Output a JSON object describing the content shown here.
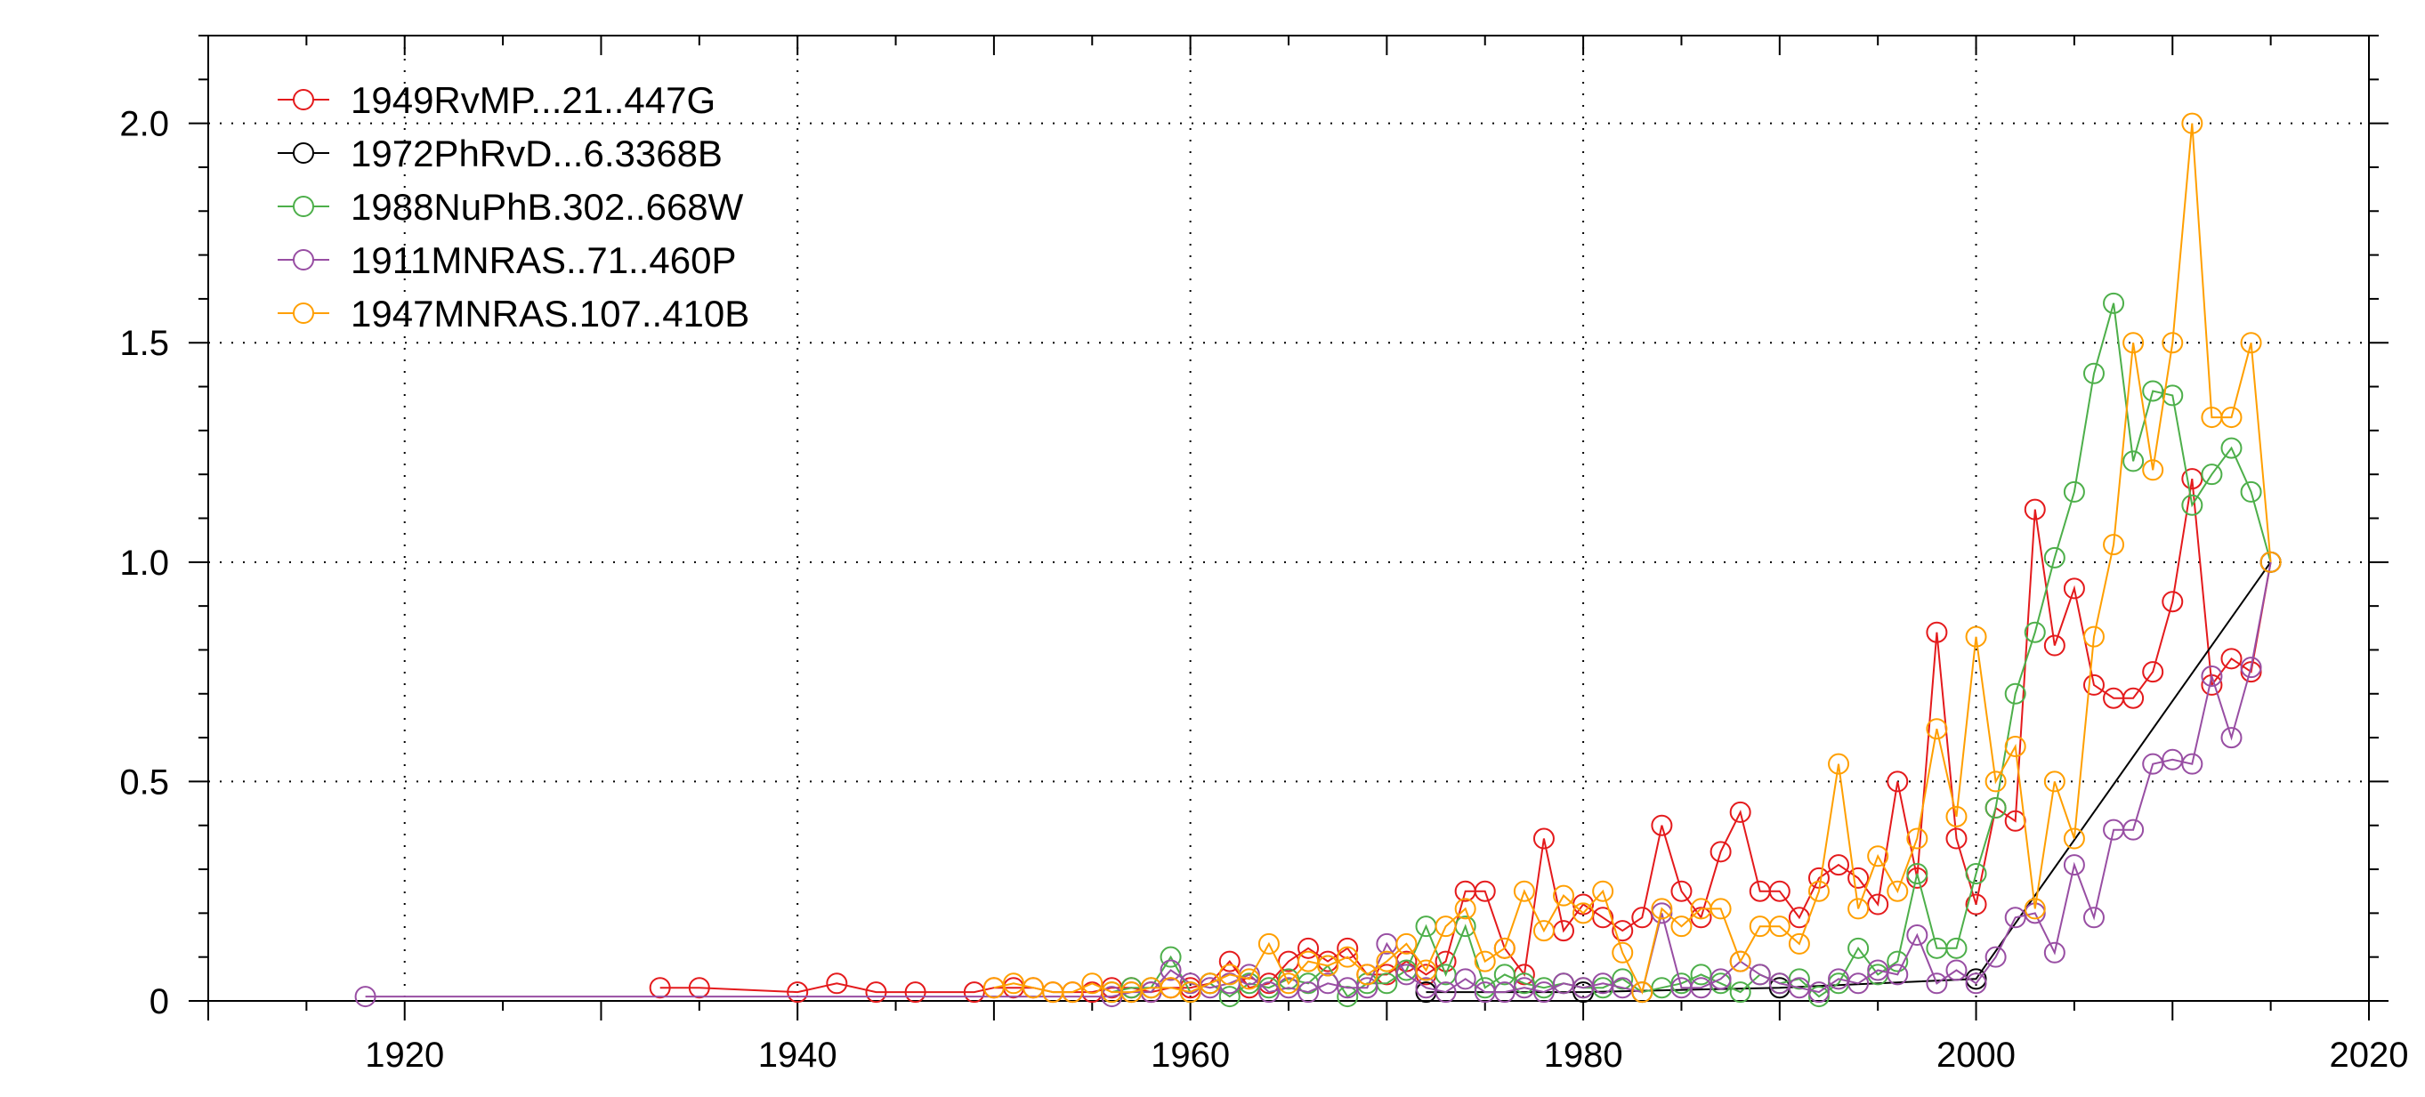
{
  "chart_data": {
    "type": "line",
    "title": "",
    "xlabel": "",
    "ylabel": "",
    "xlim": [
      1910,
      2020
    ],
    "ylim": [
      0,
      2.2
    ],
    "xticks": [
      1920,
      1940,
      1960,
      1980,
      2000,
      2020
    ],
    "yticks": [
      0,
      0.5,
      1.0,
      1.5,
      2.0
    ],
    "ytick_labels": [
      "0",
      "0.5",
      "1.0",
      "1.5",
      "2.0"
    ],
    "grid": true,
    "legend_position": "top-left",
    "series": [
      {
        "name": "1949RvMP...21..447G",
        "color": "#e41a1c",
        "x": [
          1933,
          1935,
          1940,
          1942,
          1944,
          1946,
          1949,
          1950,
          1951,
          1952,
          1953,
          1954,
          1955,
          1956,
          1957,
          1958,
          1959,
          1960,
          1961,
          1962,
          1963,
          1964,
          1965,
          1966,
          1967,
          1968,
          1969,
          1970,
          1971,
          1972,
          1973,
          1974,
          1975,
          1976,
          1977,
          1978,
          1979,
          1980,
          1981,
          1982,
          1983,
          1984,
          1985,
          1986,
          1987,
          1988,
          1989,
          1990,
          1991,
          1992,
          1993,
          1994,
          1995,
          1996,
          1997,
          1998,
          1999,
          2000,
          2001,
          2002,
          2003,
          2004,
          2005,
          2006,
          2007,
          2008,
          2009,
          2010,
          2011,
          2012,
          2013,
          2014,
          2015
        ],
        "y": [
          0.03,
          0.03,
          0.02,
          0.04,
          0.02,
          0.02,
          0.02,
          0.03,
          0.03,
          0.03,
          0.02,
          0.02,
          0.02,
          0.03,
          0.03,
          0.02,
          0.03,
          0.03,
          0.04,
          0.09,
          0.03,
          0.04,
          0.09,
          0.12,
          0.09,
          0.12,
          0.06,
          0.06,
          0.09,
          0.06,
          0.09,
          0.25,
          0.25,
          0.12,
          0.06,
          0.37,
          0.16,
          0.22,
          0.19,
          0.16,
          0.19,
          0.4,
          0.25,
          0.19,
          0.34,
          0.43,
          0.25,
          0.25,
          0.19,
          0.28,
          0.31,
          0.28,
          0.22,
          0.5,
          0.28,
          0.84,
          0.37,
          0.22,
          0.44,
          0.41,
          1.12,
          0.81,
          0.94,
          0.72,
          0.69,
          0.69,
          0.75,
          0.91,
          1.19,
          0.72,
          0.78,
          0.75,
          1.0
        ]
      },
      {
        "name": "1972PhRvD...6.3368B",
        "color": "#000000",
        "x": [
          1972,
          1980,
          1990,
          2000,
          2015
        ],
        "y": [
          0.02,
          0.02,
          0.03,
          0.05,
          1.0
        ]
      },
      {
        "name": "1988NuPhB.302..668W",
        "color": "#4daf4a",
        "x": [
          1956,
          1957,
          1958,
          1959,
          1960,
          1961,
          1962,
          1963,
          1964,
          1965,
          1966,
          1967,
          1968,
          1969,
          1970,
          1971,
          1972,
          1973,
          1974,
          1975,
          1976,
          1977,
          1978,
          1979,
          1980,
          1981,
          1982,
          1983,
          1984,
          1985,
          1986,
          1987,
          1988,
          1989,
          1990,
          1991,
          1992,
          1993,
          1994,
          1995,
          1996,
          1997,
          1998,
          1999,
          2000,
          2001,
          2002,
          2003,
          2004,
          2005,
          2006,
          2007,
          2008,
          2009,
          2010,
          2011,
          2012,
          2013,
          2014,
          2015
        ],
        "y": [
          0.02,
          0.03,
          0.03,
          0.1,
          0.02,
          0.04,
          0.01,
          0.04,
          0.03,
          0.05,
          0.04,
          0.08,
          0.01,
          0.04,
          0.04,
          0.07,
          0.17,
          0.06,
          0.17,
          0.03,
          0.06,
          0.04,
          0.03,
          0.04,
          0.03,
          0.03,
          0.05,
          0.02,
          0.03,
          0.04,
          0.06,
          0.04,
          0.02,
          0.06,
          0.04,
          0.05,
          0.01,
          0.04,
          0.12,
          0.06,
          0.09,
          0.29,
          0.12,
          0.12,
          0.29,
          0.44,
          0.7,
          0.84,
          1.01,
          1.16,
          1.43,
          1.59,
          1.23,
          1.39,
          1.38,
          1.13,
          1.2,
          1.26,
          1.16,
          1.0
        ]
      },
      {
        "name": "1911MNRAS..71..460P",
        "color": "#984ea3",
        "x": [
          1918,
          1956,
          1957,
          1958,
          1959,
          1960,
          1961,
          1962,
          1963,
          1964,
          1965,
          1966,
          1967,
          1968,
          1969,
          1970,
          1971,
          1972,
          1973,
          1974,
          1975,
          1976,
          1977,
          1978,
          1979,
          1980,
          1981,
          1982,
          1983,
          1984,
          1985,
          1986,
          1987,
          1988,
          1989,
          1990,
          1991,
          1992,
          1993,
          1994,
          1995,
          1996,
          1997,
          1998,
          1999,
          2000,
          2001,
          2002,
          2003,
          2004,
          2005,
          2006,
          2007,
          2008,
          2009,
          2010,
          2011,
          2012,
          2013,
          2014,
          2015
        ],
        "y": [
          0.01,
          0.01,
          0.02,
          0.02,
          0.07,
          0.04,
          0.03,
          0.04,
          0.06,
          0.02,
          0.03,
          0.02,
          0.04,
          0.03,
          0.03,
          0.13,
          0.06,
          0.03,
          0.02,
          0.05,
          0.02,
          0.02,
          0.03,
          0.02,
          0.04,
          0.03,
          0.04,
          0.03,
          0.02,
          0.2,
          0.03,
          0.03,
          0.05,
          0.09,
          0.06,
          0.04,
          0.03,
          0.02,
          0.05,
          0.04,
          0.07,
          0.06,
          0.15,
          0.04,
          0.07,
          0.04,
          0.1,
          0.19,
          0.2,
          0.11,
          0.31,
          0.19,
          0.39,
          0.39,
          0.54,
          0.55,
          0.54,
          0.74,
          0.6,
          0.76,
          1.0
        ]
      },
      {
        "name": "1947MNRAS.107..410B",
        "color": "#ff9f00",
        "x": [
          1950,
          1951,
          1952,
          1953,
          1954,
          1955,
          1956,
          1957,
          1958,
          1959,
          1960,
          1961,
          1962,
          1963,
          1964,
          1965,
          1966,
          1967,
          1968,
          1969,
          1970,
          1971,
          1972,
          1973,
          1974,
          1975,
          1976,
          1977,
          1978,
          1979,
          1980,
          1981,
          1982,
          1983,
          1984,
          1985,
          1986,
          1987,
          1988,
          1989,
          1990,
          1991,
          1992,
          1993,
          1994,
          1995,
          1996,
          1997,
          1998,
          1999,
          2000,
          2001,
          2002,
          2003,
          2004,
          2005,
          2006,
          2007,
          2008,
          2009,
          2010,
          2011,
          2012,
          2013,
          2014,
          2015
        ],
        "y": [
          0.03,
          0.04,
          0.03,
          0.02,
          0.02,
          0.04,
          0.02,
          0.02,
          0.03,
          0.03,
          0.02,
          0.04,
          0.06,
          0.05,
          0.13,
          0.04,
          0.09,
          0.08,
          0.1,
          0.06,
          0.09,
          0.13,
          0.07,
          0.17,
          0.21,
          0.09,
          0.12,
          0.25,
          0.16,
          0.24,
          0.2,
          0.25,
          0.11,
          0.02,
          0.21,
          0.17,
          0.21,
          0.21,
          0.09,
          0.17,
          0.17,
          0.13,
          0.25,
          0.54,
          0.21,
          0.33,
          0.25,
          0.37,
          0.62,
          0.42,
          0.83,
          0.5,
          0.58,
          0.21,
          0.5,
          0.37,
          0.83,
          1.04,
          1.5,
          1.21,
          1.5,
          2.0,
          1.33,
          1.33,
          1.5,
          1.0
        ]
      }
    ]
  }
}
